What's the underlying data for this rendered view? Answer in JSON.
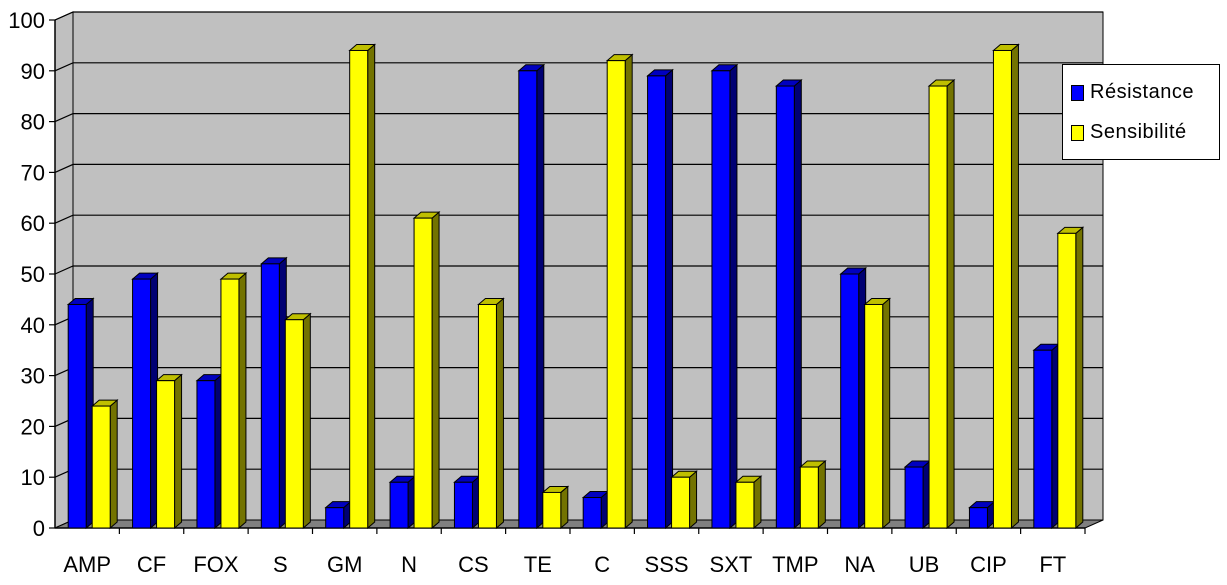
{
  "chart_data": {
    "type": "bar",
    "categories": [
      "AMP",
      "CF",
      "FOX",
      "S",
      "GM",
      "N",
      "CS",
      "TE",
      "C",
      "SSS",
      "SXT",
      "TMP",
      "NA",
      "UB",
      "CIP",
      "FT"
    ],
    "series": [
      {
        "name": "Résistance",
        "color": "#0000ff",
        "values": [
          44,
          49,
          29,
          52,
          4,
          9,
          9,
          90,
          6,
          89,
          90,
          87,
          50,
          12,
          4,
          35
        ]
      },
      {
        "name": "Sensibilité",
        "color": "#ffff00",
        "values": [
          24,
          29,
          49,
          41,
          94,
          61,
          44,
          7,
          92,
          10,
          9,
          12,
          44,
          87,
          94,
          58
        ]
      }
    ],
    "ylim": [
      0,
      100
    ],
    "yticks": [
      "0",
      "10",
      "20",
      "30",
      "40",
      "50",
      "60",
      "70",
      "80",
      "90",
      "100"
    ],
    "grid": true,
    "legend_position": "right",
    "wall_color": "#c0c0c0",
    "floor_color": "#808080"
  }
}
